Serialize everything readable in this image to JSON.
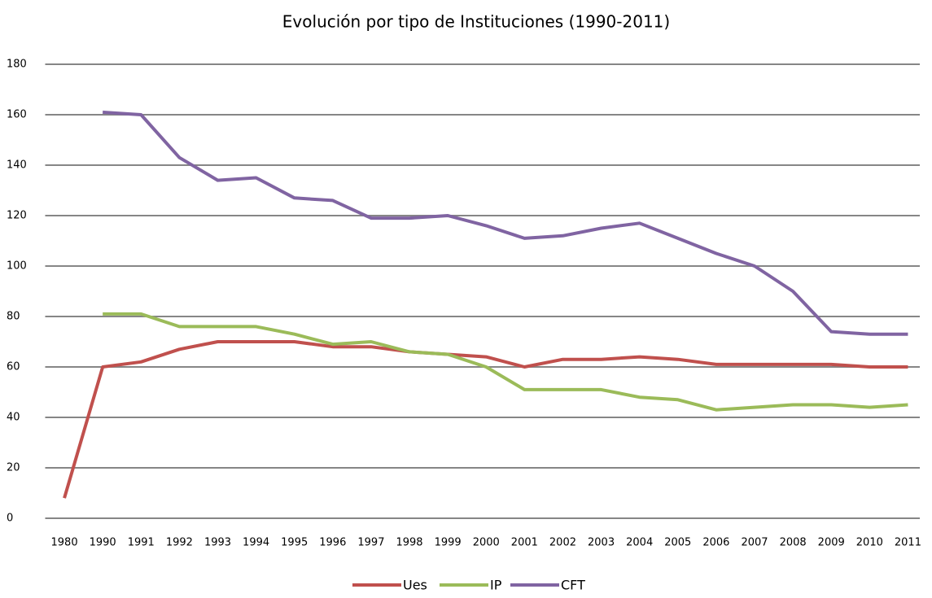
{
  "chart_data": {
    "type": "line",
    "title": "Evolución por tipo de Instituciones (1990-2011)",
    "categories": [
      "1980",
      "1990",
      "1991",
      "1992",
      "1993",
      "1994",
      "1995",
      "1996",
      "1997",
      "1998",
      "1999",
      "2000",
      "2001",
      "2002",
      "2003",
      "2004",
      "2005",
      "2006",
      "2007",
      "2008",
      "2009",
      "2010",
      "2011"
    ],
    "series": [
      {
        "name": "Ues",
        "color": "#c0504d",
        "values": [
          8,
          60,
          62,
          67,
          70,
          70,
          70,
          68,
          68,
          66,
          65,
          64,
          60,
          63,
          63,
          64,
          63,
          61,
          61,
          61,
          61,
          60,
          60
        ]
      },
      {
        "name": "IP",
        "color": "#9bbb59",
        "values": [
          null,
          81,
          81,
          76,
          76,
          76,
          73,
          69,
          70,
          66,
          65,
          60,
          51,
          51,
          51,
          48,
          47,
          43,
          44,
          45,
          45,
          44,
          45
        ]
      },
      {
        "name": "CFT",
        "color": "#8064a2",
        "values": [
          null,
          161,
          160,
          143,
          134,
          135,
          127,
          126,
          119,
          119,
          120,
          116,
          111,
          112,
          115,
          117,
          111,
          105,
          100,
          90,
          74,
          73,
          73
        ]
      }
    ],
    "ylim": [
      0,
      180
    ],
    "yticks": [
      0,
      20,
      40,
      60,
      80,
      100,
      120,
      140,
      160,
      180
    ],
    "grid": true,
    "legend": "bottom"
  }
}
